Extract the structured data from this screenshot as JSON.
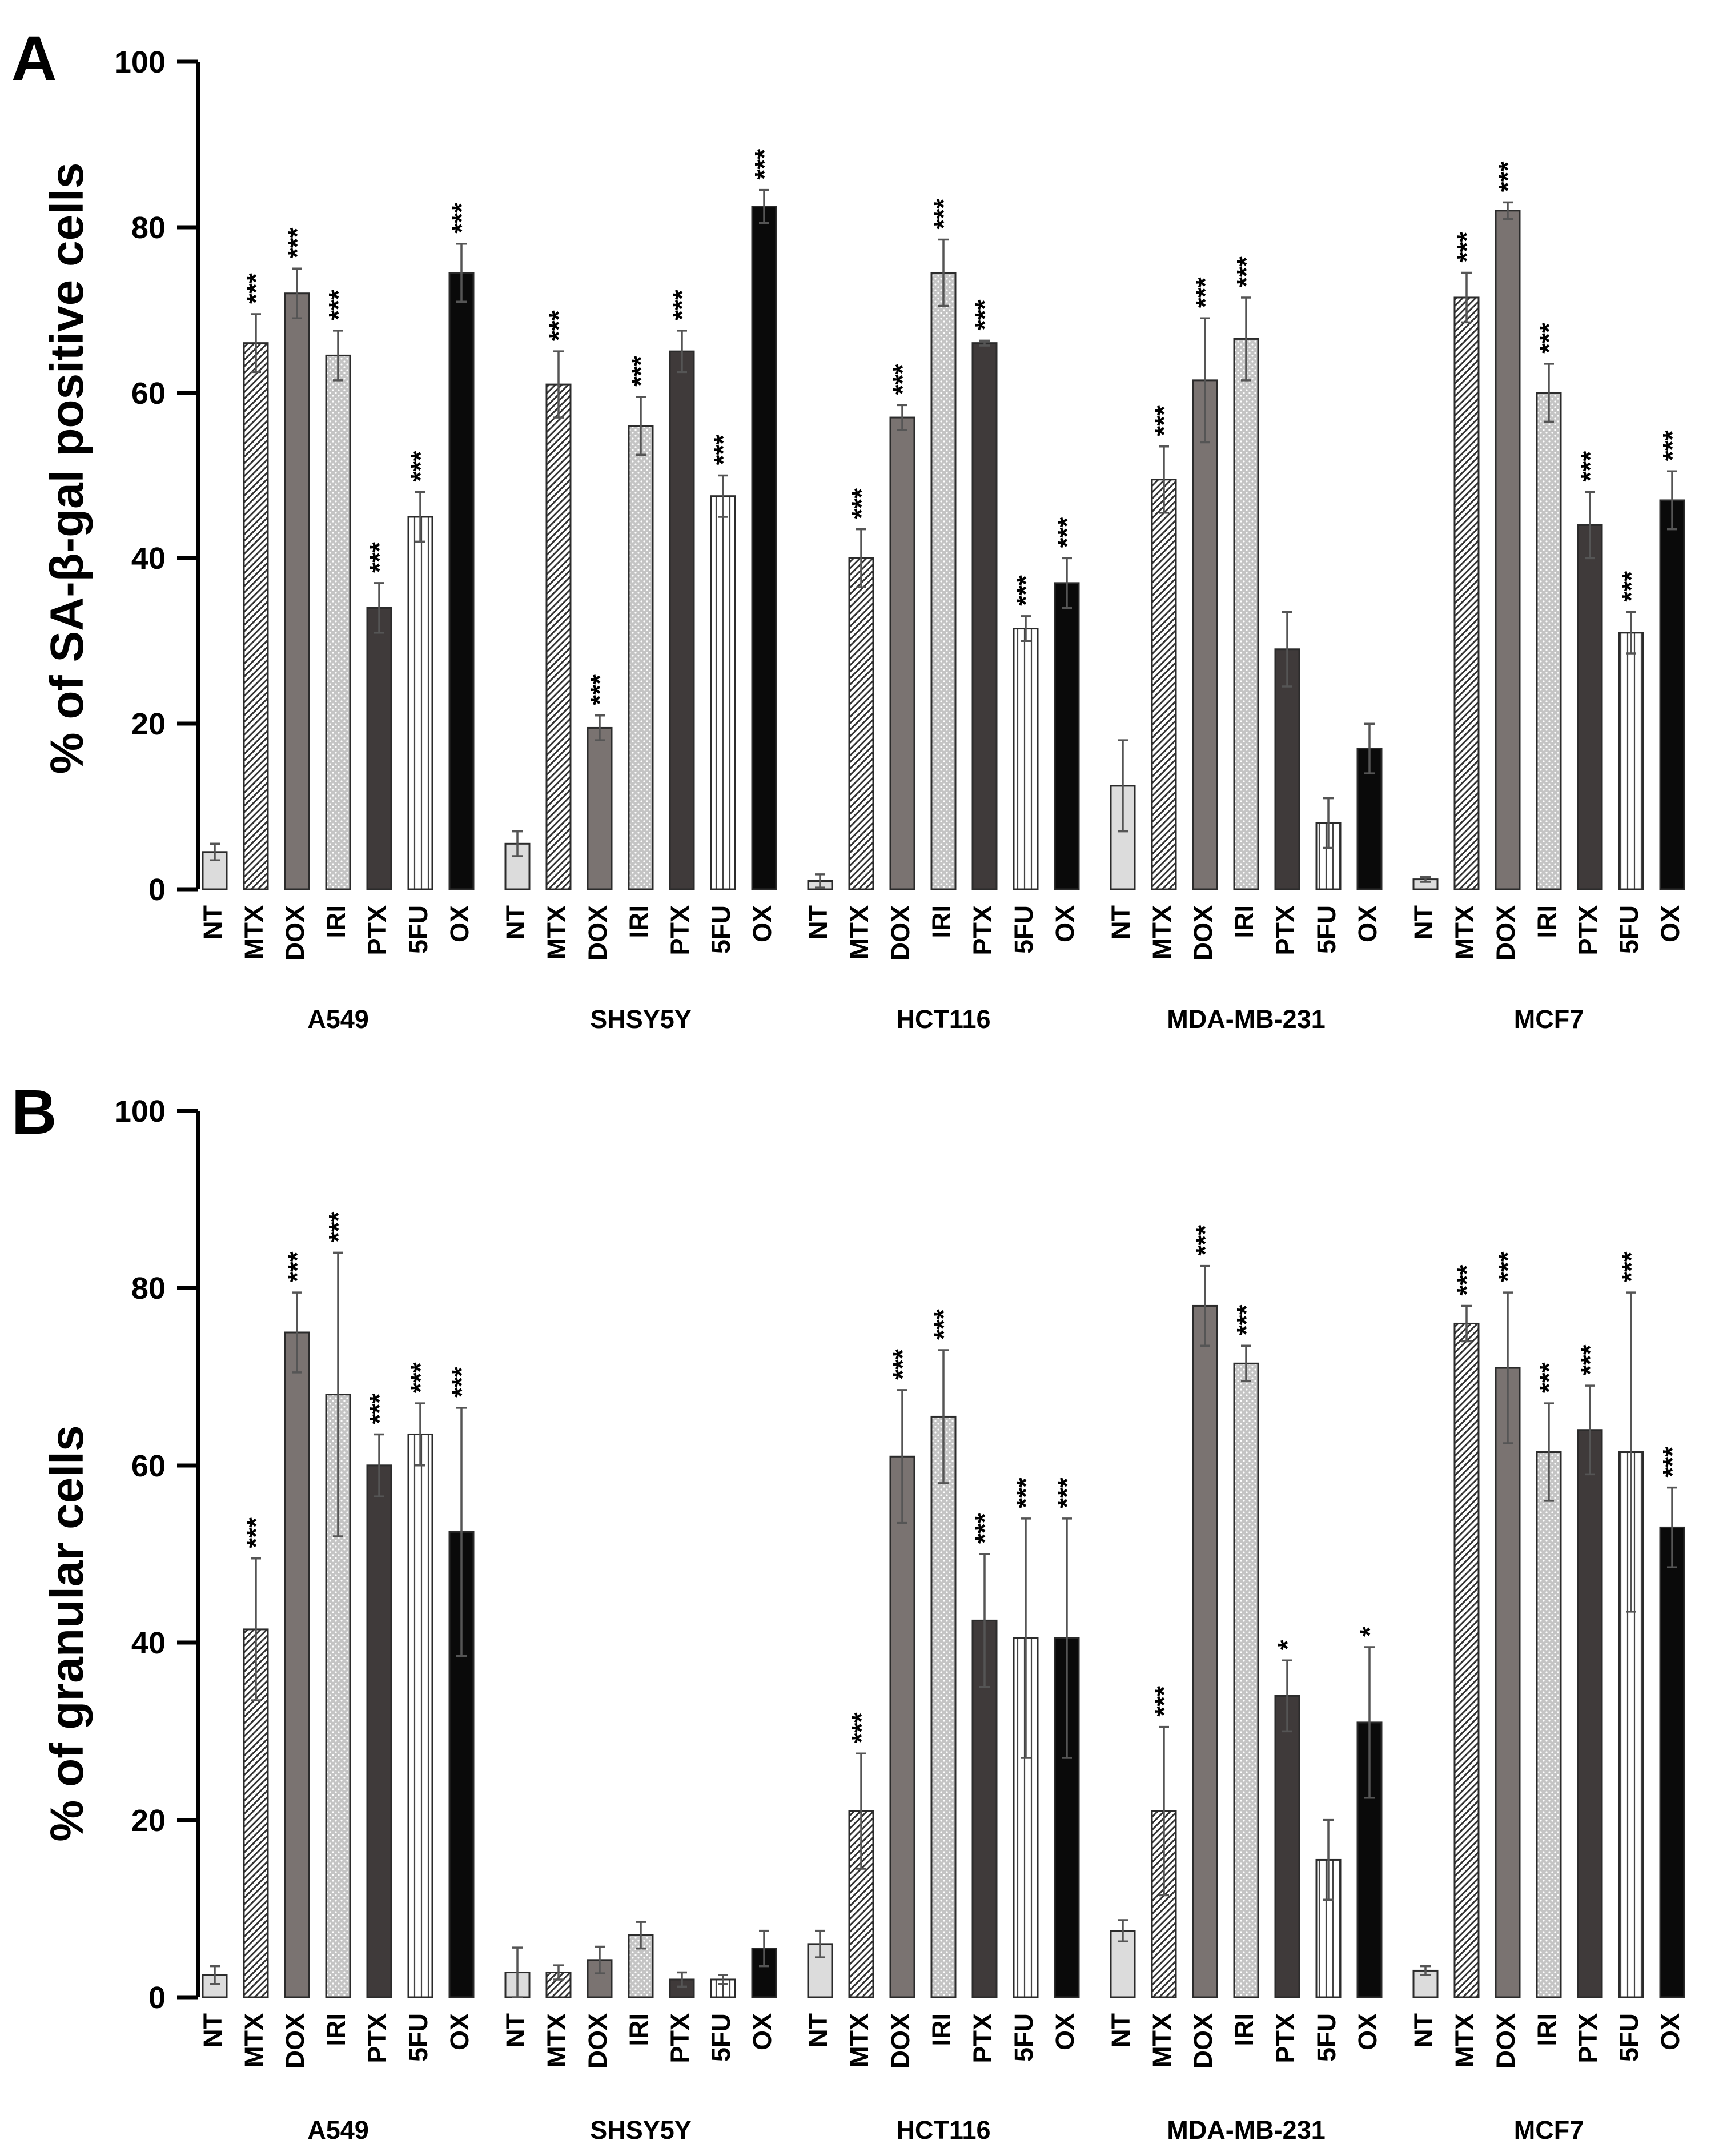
{
  "treatments": [
    "NT",
    "MTX",
    "DOX",
    "IRI",
    "PTX",
    "5FU",
    "OX"
  ],
  "cell_lines": [
    "A549",
    "SHSY5Y",
    "HCT116",
    "MDA-MB-231",
    "MCF7"
  ],
  "colors": {
    "NT": "#dcdcdc",
    "MTX": "#ffffff",
    "DOX": "#7a7371",
    "IRI": "#c9c9c9",
    "PTX": "#3f3a3a",
    "5FU": "#ffffff",
    "OX": "#0a0a0a",
    "edge": "#2b2b2b"
  },
  "chart_data": [
    {
      "panel": "A",
      "type": "bar",
      "ylabel": "% of SA-β-gal positive cells",
      "xlabel": "",
      "ylim": [
        0,
        100
      ],
      "yticks": [
        "0",
        "20",
        "40",
        "60",
        "80",
        "100"
      ],
      "groups": [
        {
          "name": "A549",
          "values": [
            4.5,
            66,
            72,
            64.5,
            34,
            45,
            74.5
          ],
          "errors": [
            1,
            3.5,
            3,
            3,
            3,
            3,
            3.5
          ],
          "sig": [
            "",
            "***",
            "***",
            "***",
            "***",
            "***",
            "***"
          ]
        },
        {
          "name": "SHSY5Y",
          "values": [
            5.5,
            61,
            19.5,
            56,
            65,
            47.5,
            82.5
          ],
          "errors": [
            1.5,
            4,
            1.5,
            3.5,
            2.5,
            2.5,
            2
          ],
          "sig": [
            "",
            "***",
            "***",
            "***",
            "***",
            "***",
            "***"
          ]
        },
        {
          "name": "HCT116",
          "values": [
            1,
            40,
            57,
            74.5,
            66,
            31.5,
            37
          ],
          "errors": [
            0.8,
            3.5,
            1.5,
            4,
            0.3,
            1.5,
            3
          ],
          "sig": [
            "",
            "***",
            "***",
            "***",
            "***",
            "***",
            "***"
          ]
        },
        {
          "name": "MDA-MB-231",
          "values": [
            12.5,
            49.5,
            61.5,
            66.5,
            29,
            8,
            17
          ],
          "errors": [
            5.5,
            4,
            7.5,
            5,
            4.5,
            3,
            3
          ],
          "sig": [
            "",
            "***",
            "***",
            "***",
            "",
            "",
            ""
          ]
        },
        {
          "name": "MCF7",
          "values": [
            1.2,
            71.5,
            82,
            60,
            44,
            31,
            47
          ],
          "errors": [
            0.3,
            3,
            1,
            3.5,
            4,
            2.5,
            3.5
          ],
          "sig": [
            "",
            "***",
            "***",
            "***",
            "***",
            "***",
            "***"
          ]
        }
      ]
    },
    {
      "panel": "B",
      "type": "bar",
      "ylabel": "% of granular cells",
      "xlabel": "",
      "ylim": [
        0,
        100
      ],
      "yticks": [
        "0",
        "20",
        "40",
        "60",
        "80",
        "100"
      ],
      "groups": [
        {
          "name": "A549",
          "values": [
            2.5,
            41.5,
            75,
            68,
            60,
            63.5,
            52.5
          ],
          "errors": [
            1,
            8,
            4.5,
            16,
            3.5,
            3.5,
            14
          ],
          "sig": [
            "",
            "***",
            "***",
            "***",
            "***",
            "***",
            "***"
          ]
        },
        {
          "name": "SHSY5Y",
          "values": [
            2.8,
            2.8,
            4.2,
            7,
            2,
            2,
            5.5
          ],
          "errors": [
            2.8,
            0.8,
            1.5,
            1.5,
            0.8,
            0.5,
            2
          ],
          "sig": [
            "",
            "",
            "",
            "",
            "",
            "",
            ""
          ]
        },
        {
          "name": "HCT116",
          "values": [
            6,
            21,
            61,
            65.5,
            42.5,
            40.5,
            40.5
          ],
          "errors": [
            1.5,
            6.5,
            7.5,
            7.5,
            7.5,
            13.5,
            13.5
          ],
          "sig": [
            "",
            "***",
            "***",
            "***",
            "***",
            "***",
            "***"
          ]
        },
        {
          "name": "MDA-MB-231",
          "values": [
            7.5,
            21,
            78,
            71.5,
            34,
            15.5,
            31
          ],
          "errors": [
            1.2,
            9.5,
            4.5,
            2,
            4,
            4.5,
            8.5
          ],
          "sig": [
            "",
            "***",
            "***",
            "***",
            "*",
            "",
            "*"
          ]
        },
        {
          "name": "MCF7",
          "values": [
            3,
            76,
            71,
            61.5,
            64,
            61.5,
            53
          ],
          "errors": [
            0.5,
            2,
            8.5,
            5.5,
            5,
            18,
            4.5
          ],
          "sig": [
            "",
            "***",
            "***",
            "***",
            "***",
            "***",
            "***"
          ]
        }
      ]
    }
  ]
}
